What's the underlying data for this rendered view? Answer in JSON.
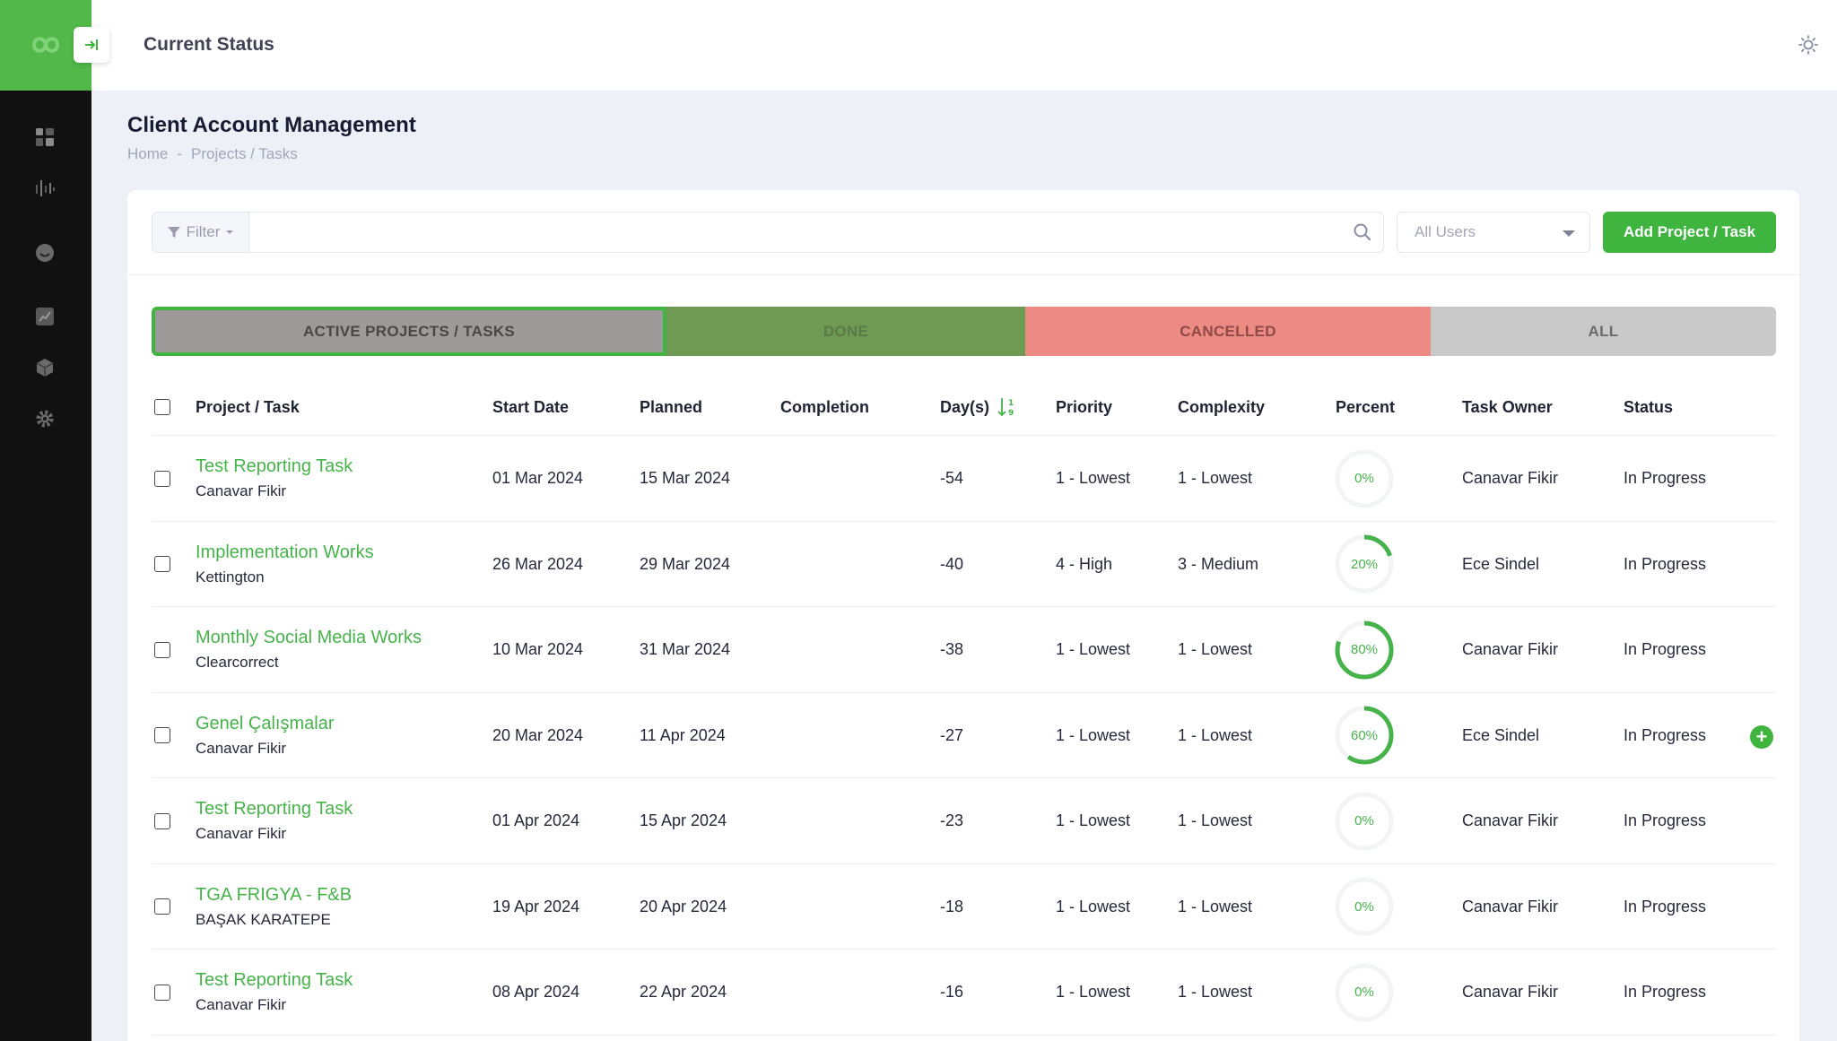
{
  "header": {
    "title": "Current Status"
  },
  "sidebar": {
    "items": [
      {
        "icon": "dashboard-icon"
      },
      {
        "icon": "analytics-icon"
      },
      {
        "icon": "smile-icon"
      },
      {
        "icon": "chart-icon"
      },
      {
        "icon": "box-icon"
      },
      {
        "icon": "settings-icon"
      }
    ]
  },
  "page": {
    "title": "Client Account Management",
    "breadcrumb": {
      "home": "Home",
      "separator": "-",
      "current": "Projects / Tasks"
    }
  },
  "toolbar": {
    "filter_label": "Filter",
    "search_placeholder": "",
    "user_select": "All Users",
    "add_label": "Add Project / Task"
  },
  "tabs": {
    "active": "ACTIVE PROJECTS / TASKS",
    "done": "DONE",
    "cancelled": "CANCELLED",
    "all": "ALL"
  },
  "table": {
    "columns": {
      "project": "Project / Task",
      "start": "Start Date",
      "planned": "Planned",
      "completion": "Completion",
      "days": "Day(s)",
      "priority": "Priority",
      "complexity": "Complexity",
      "percent": "Percent",
      "owner": "Task Owner",
      "status": "Status"
    },
    "rows": [
      {
        "task": "Test Reporting Task",
        "client": "Canavar Fikir",
        "start": "01 Mar 2024",
        "planned": "15 Mar 2024",
        "completion": "",
        "days": "-54",
        "priority": "1 - Lowest",
        "complexity": "1 - Lowest",
        "percent_label": "0%",
        "percent": 0,
        "owner": "Canavar Fikir",
        "status": "In Progress"
      },
      {
        "task": "Implementation Works",
        "client": "Kettington",
        "start": "26 Mar 2024",
        "planned": "29 Mar 2024",
        "completion": "",
        "days": "-40",
        "priority": "4 - High",
        "complexity": "3 - Medium",
        "percent_label": "20%",
        "percent": 20,
        "owner": "Ece Sindel",
        "status": "In Progress"
      },
      {
        "task": "Monthly Social Media Works",
        "client": "Clearcorrect",
        "start": "10 Mar 2024",
        "planned": "31 Mar 2024",
        "completion": "",
        "days": "-38",
        "priority": "1 - Lowest",
        "complexity": "1 - Lowest",
        "percent_label": "80%",
        "percent": 80,
        "owner": "Canavar Fikir",
        "status": "In Progress"
      },
      {
        "task": "Genel Çalışmalar",
        "client": "Canavar Fikir",
        "start": "20 Mar 2024",
        "planned": "11 Apr 2024",
        "completion": "",
        "days": "-27",
        "priority": "1 - Lowest",
        "complexity": "1 - Lowest",
        "percent_label": "60%",
        "percent": 60,
        "owner": "Ece Sindel",
        "status": "In Progress",
        "plus": "+"
      },
      {
        "task": "Test Reporting Task",
        "client": "Canavar Fikir",
        "start": "01 Apr 2024",
        "planned": "15 Apr 2024",
        "completion": "",
        "days": "-23",
        "priority": "1 - Lowest",
        "complexity": "1 - Lowest",
        "percent_label": "0%",
        "percent": 0,
        "owner": "Canavar Fikir",
        "status": "In Progress"
      },
      {
        "task": "TGA FRIGYA - F&B",
        "client": "BAŞAK KARATEPE",
        "start": "19 Apr 2024",
        "planned": "20 Apr 2024",
        "completion": "",
        "days": "-18",
        "priority": "1 - Lowest",
        "complexity": "1 - Lowest",
        "percent_label": "0%",
        "percent": 0,
        "owner": "Canavar Fikir",
        "status": "In Progress"
      },
      {
        "task": "Test Reporting Task",
        "client": "Canavar Fikir",
        "start": "08 Apr 2024",
        "planned": "22 Apr 2024",
        "completion": "",
        "days": "-16",
        "priority": "1 - Lowest",
        "complexity": "1 - Lowest",
        "percent_label": "0%",
        "percent": 0,
        "owner": "Canavar Fikir",
        "status": "In Progress"
      }
    ]
  },
  "colors": {
    "brand_green": "#3fb53f",
    "link_green": "#46b34a",
    "sidebar_bg": "#111111",
    "tab_done": "#6e9a54",
    "tab_cancelled": "#ee8a84",
    "tab_all": "#c9c9c9"
  }
}
